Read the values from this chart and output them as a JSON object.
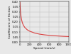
{
  "title": "",
  "xlabel": "Speed (mm/s)",
  "ylabel": "Coefficient of friction",
  "x_min": 0,
  "x_max": 1000,
  "y_min": 0,
  "y_max": 0.4,
  "y_ticks": [
    0.0,
    0.05,
    0.1,
    0.15,
    0.2,
    0.25,
    0.3,
    0.35,
    0.4
  ],
  "x_ticks": [
    0,
    200,
    400,
    600,
    800,
    1000
  ],
  "curve_color": "#d94040",
  "curve_x": [
    1,
    3,
    5,
    8,
    12,
    18,
    25,
    35,
    50,
    70,
    100,
    150,
    200,
    300,
    400,
    500,
    600,
    700,
    800,
    900,
    1000
  ],
  "curve_y": [
    0.395,
    0.375,
    0.355,
    0.33,
    0.305,
    0.275,
    0.248,
    0.22,
    0.192,
    0.168,
    0.145,
    0.122,
    0.108,
    0.09,
    0.079,
    0.072,
    0.067,
    0.063,
    0.06,
    0.057,
    0.055
  ],
  "grid_color": "#bbbbbb",
  "bg_color": "#e8e8e8",
  "label_fontsize": 3.2,
  "tick_fontsize": 2.8,
  "linewidth": 0.8
}
